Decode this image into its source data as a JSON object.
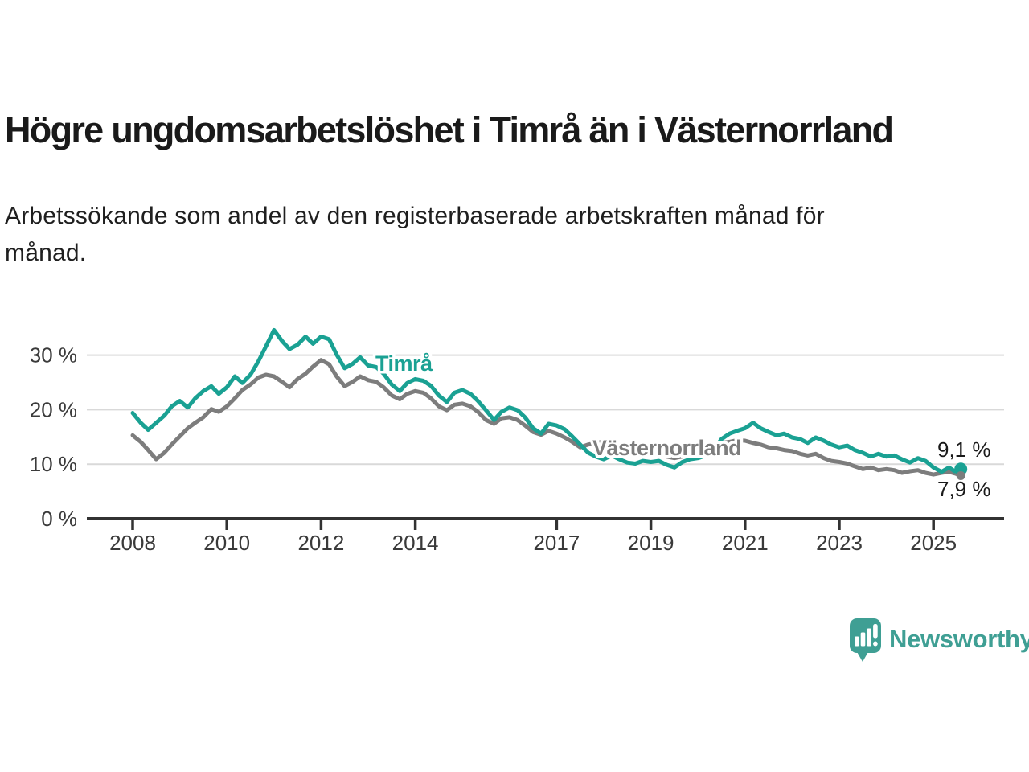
{
  "title": "Högre ungdomsarbetslöshet i Timrå än i Västernorrland",
  "subtitle": {
    "line1": "Arbetssökande som andel av den registerbaserade arbetskraften månad för",
    "line2": "månad."
  },
  "colors": {
    "timra_line": "#1aa193",
    "vasternorrland_line": "#7d7d7d",
    "gridline": "#d9d9d9",
    "axis": "#323232",
    "tick_label": "#3a3a3a",
    "value_label": "#1a1a1a",
    "title_text": "#1a1a1a",
    "logo_teal": "#3f9f94"
  },
  "chart_data": {
    "type": "line",
    "title": "Högre ungdomsarbetslöshet i Timrå än i Västernorrland",
    "subtitle": "Arbetssökande som andel av den registerbaserade arbetskraften månad för månad.",
    "xlabel": "",
    "ylabel": "",
    "x_unit": "year (monthly data)",
    "y_unit": "%",
    "x_tick_years": [
      2008,
      2010,
      2012,
      2014,
      2017,
      2019,
      2021,
      2023,
      2025
    ],
    "y_ticks": [
      0,
      10,
      20,
      30
    ],
    "y_tick_labels": [
      "0 %",
      "10 %",
      "20 %",
      "30 %"
    ],
    "ylim": [
      0,
      36
    ],
    "xlim": [
      2007.05,
      2026.5
    ],
    "grid": "horizontal",
    "legend_position": "inline-labels",
    "series": [
      {
        "name": "Timrå",
        "color": "#1aa193",
        "end_label": "9,1 %",
        "end_value": 9.1,
        "points": [
          [
            2008.0,
            19.4
          ],
          [
            2008.17,
            17.6
          ],
          [
            2008.33,
            16.3
          ],
          [
            2008.5,
            17.6
          ],
          [
            2008.67,
            18.9
          ],
          [
            2008.83,
            20.6
          ],
          [
            2009.0,
            21.6
          ],
          [
            2009.17,
            20.4
          ],
          [
            2009.33,
            22.1
          ],
          [
            2009.5,
            23.4
          ],
          [
            2009.67,
            24.3
          ],
          [
            2009.83,
            22.9
          ],
          [
            2010.0,
            24.1
          ],
          [
            2010.17,
            26.1
          ],
          [
            2010.33,
            24.9
          ],
          [
            2010.5,
            26.4
          ],
          [
            2010.67,
            28.9
          ],
          [
            2010.83,
            31.6
          ],
          [
            2011.0,
            34.6
          ],
          [
            2011.17,
            32.6
          ],
          [
            2011.33,
            31.1
          ],
          [
            2011.5,
            31.9
          ],
          [
            2011.67,
            33.4
          ],
          [
            2011.83,
            32.1
          ],
          [
            2012.0,
            33.4
          ],
          [
            2012.17,
            32.9
          ],
          [
            2012.33,
            30.1
          ],
          [
            2012.5,
            27.6
          ],
          [
            2012.67,
            28.4
          ],
          [
            2012.83,
            29.6
          ],
          [
            2013.0,
            28.1
          ],
          [
            2013.17,
            27.8
          ],
          [
            2013.33,
            26.6
          ],
          [
            2013.5,
            24.6
          ],
          [
            2013.67,
            23.4
          ],
          [
            2013.83,
            24.9
          ],
          [
            2014.0,
            25.6
          ],
          [
            2014.17,
            25.3
          ],
          [
            2014.33,
            24.4
          ],
          [
            2014.5,
            22.6
          ],
          [
            2014.67,
            21.4
          ],
          [
            2014.83,
            23.1
          ],
          [
            2015.0,
            23.6
          ],
          [
            2015.17,
            22.9
          ],
          [
            2015.33,
            21.6
          ],
          [
            2015.5,
            19.9
          ],
          [
            2015.67,
            18.1
          ],
          [
            2015.83,
            19.6
          ],
          [
            2016.0,
            20.4
          ],
          [
            2016.17,
            19.9
          ],
          [
            2016.33,
            18.6
          ],
          [
            2016.5,
            16.6
          ],
          [
            2016.67,
            15.6
          ],
          [
            2016.83,
            17.4
          ],
          [
            2017.0,
            17.1
          ],
          [
            2017.17,
            16.4
          ],
          [
            2017.33,
            15.1
          ],
          [
            2017.5,
            13.6
          ],
          [
            2017.67,
            12.1
          ],
          [
            2017.83,
            11.4
          ],
          [
            2018.0,
            10.9
          ],
          [
            2018.17,
            11.6
          ],
          [
            2018.33,
            10.9
          ],
          [
            2018.5,
            10.3
          ],
          [
            2018.67,
            10.1
          ],
          [
            2018.83,
            10.6
          ],
          [
            2019.0,
            10.4
          ],
          [
            2019.17,
            10.6
          ],
          [
            2019.33,
            9.9
          ],
          [
            2019.5,
            9.4
          ],
          [
            2019.67,
            10.4
          ],
          [
            2019.83,
            10.9
          ],
          [
            2020.0,
            11.1
          ],
          [
            2020.17,
            11.6
          ],
          [
            2020.33,
            12.6
          ],
          [
            2020.5,
            14.6
          ],
          [
            2020.67,
            15.6
          ],
          [
            2020.83,
            16.1
          ],
          [
            2021.0,
            16.6
          ],
          [
            2021.17,
            17.6
          ],
          [
            2021.33,
            16.6
          ],
          [
            2021.5,
            15.9
          ],
          [
            2021.67,
            15.3
          ],
          [
            2021.83,
            15.6
          ],
          [
            2022.0,
            14.9
          ],
          [
            2022.17,
            14.6
          ],
          [
            2022.33,
            13.9
          ],
          [
            2022.5,
            14.9
          ],
          [
            2022.67,
            14.3
          ],
          [
            2022.83,
            13.6
          ],
          [
            2023.0,
            13.1
          ],
          [
            2023.17,
            13.4
          ],
          [
            2023.33,
            12.6
          ],
          [
            2023.5,
            12.1
          ],
          [
            2023.67,
            11.4
          ],
          [
            2023.83,
            11.9
          ],
          [
            2024.0,
            11.4
          ],
          [
            2024.17,
            11.6
          ],
          [
            2024.33,
            10.9
          ],
          [
            2024.5,
            10.3
          ],
          [
            2024.67,
            11.1
          ],
          [
            2024.83,
            10.6
          ],
          [
            2025.0,
            9.4
          ],
          [
            2025.17,
            8.6
          ],
          [
            2025.33,
            9.4
          ],
          [
            2025.45,
            8.7
          ],
          [
            2025.58,
            9.1
          ]
        ]
      },
      {
        "name": "Västernorrland",
        "color": "#7d7d7d",
        "end_label": "7,9 %",
        "end_value": 7.9,
        "points": [
          [
            2008.0,
            15.3
          ],
          [
            2008.17,
            14.1
          ],
          [
            2008.33,
            12.6
          ],
          [
            2008.5,
            10.9
          ],
          [
            2008.67,
            12.1
          ],
          [
            2008.83,
            13.6
          ],
          [
            2009.0,
            15.1
          ],
          [
            2009.17,
            16.6
          ],
          [
            2009.33,
            17.6
          ],
          [
            2009.5,
            18.6
          ],
          [
            2009.67,
            20.1
          ],
          [
            2009.83,
            19.6
          ],
          [
            2010.0,
            20.6
          ],
          [
            2010.17,
            22.1
          ],
          [
            2010.33,
            23.6
          ],
          [
            2010.5,
            24.6
          ],
          [
            2010.67,
            25.9
          ],
          [
            2010.83,
            26.4
          ],
          [
            2011.0,
            26.1
          ],
          [
            2011.17,
            25.1
          ],
          [
            2011.33,
            24.1
          ],
          [
            2011.5,
            25.6
          ],
          [
            2011.67,
            26.6
          ],
          [
            2011.83,
            27.9
          ],
          [
            2012.0,
            29.1
          ],
          [
            2012.17,
            28.3
          ],
          [
            2012.33,
            26.1
          ],
          [
            2012.5,
            24.3
          ],
          [
            2012.67,
            25.1
          ],
          [
            2012.83,
            26.1
          ],
          [
            2013.0,
            25.4
          ],
          [
            2013.17,
            25.1
          ],
          [
            2013.33,
            24.1
          ],
          [
            2013.5,
            22.6
          ],
          [
            2013.67,
            21.9
          ],
          [
            2013.83,
            22.9
          ],
          [
            2014.0,
            23.4
          ],
          [
            2014.17,
            23.1
          ],
          [
            2014.33,
            22.1
          ],
          [
            2014.5,
            20.6
          ],
          [
            2014.67,
            19.9
          ],
          [
            2014.83,
            20.9
          ],
          [
            2015.0,
            21.1
          ],
          [
            2015.17,
            20.6
          ],
          [
            2015.33,
            19.6
          ],
          [
            2015.5,
            18.1
          ],
          [
            2015.67,
            17.4
          ],
          [
            2015.83,
            18.4
          ],
          [
            2016.0,
            18.6
          ],
          [
            2016.17,
            18.1
          ],
          [
            2016.33,
            17.1
          ],
          [
            2016.5,
            15.9
          ],
          [
            2016.67,
            15.4
          ],
          [
            2016.83,
            16.1
          ],
          [
            2017.0,
            15.6
          ],
          [
            2017.17,
            14.9
          ],
          [
            2017.33,
            14.1
          ],
          [
            2017.5,
            13.1
          ],
          [
            2017.67,
            13.6
          ],
          [
            2017.83,
            13.9
          ],
          [
            2018.0,
            14.1
          ],
          [
            2018.17,
            13.9
          ],
          [
            2018.33,
            13.4
          ],
          [
            2018.5,
            12.9
          ],
          [
            2018.67,
            12.4
          ],
          [
            2018.83,
            12.6
          ],
          [
            2019.0,
            12.1
          ],
          [
            2019.17,
            11.9
          ],
          [
            2019.33,
            11.4
          ],
          [
            2019.5,
            11.1
          ],
          [
            2019.67,
            11.4
          ],
          [
            2019.83,
            11.6
          ],
          [
            2020.0,
            11.9
          ],
          [
            2020.17,
            12.6
          ],
          [
            2020.33,
            13.4
          ],
          [
            2020.5,
            13.9
          ],
          [
            2020.67,
            14.1
          ],
          [
            2020.83,
            14.4
          ],
          [
            2021.0,
            14.3
          ],
          [
            2021.17,
            13.9
          ],
          [
            2021.33,
            13.6
          ],
          [
            2021.5,
            13.1
          ],
          [
            2021.67,
            12.9
          ],
          [
            2021.83,
            12.6
          ],
          [
            2022.0,
            12.4
          ],
          [
            2022.17,
            11.9
          ],
          [
            2022.33,
            11.6
          ],
          [
            2022.5,
            11.9
          ],
          [
            2022.67,
            11.1
          ],
          [
            2022.83,
            10.6
          ],
          [
            2023.0,
            10.4
          ],
          [
            2023.17,
            10.1
          ],
          [
            2023.33,
            9.6
          ],
          [
            2023.5,
            9.1
          ],
          [
            2023.67,
            9.4
          ],
          [
            2023.83,
            8.9
          ],
          [
            2024.0,
            9.1
          ],
          [
            2024.17,
            8.9
          ],
          [
            2024.33,
            8.4
          ],
          [
            2024.5,
            8.7
          ],
          [
            2024.67,
            8.9
          ],
          [
            2024.83,
            8.4
          ],
          [
            2025.0,
            8.1
          ],
          [
            2025.17,
            8.4
          ],
          [
            2025.33,
            8.6
          ],
          [
            2025.45,
            8.3
          ],
          [
            2025.58,
            7.9
          ]
        ]
      }
    ]
  },
  "logo": {
    "wordmark": "Newsworthy",
    "icon": "chart-speech-bubble"
  }
}
